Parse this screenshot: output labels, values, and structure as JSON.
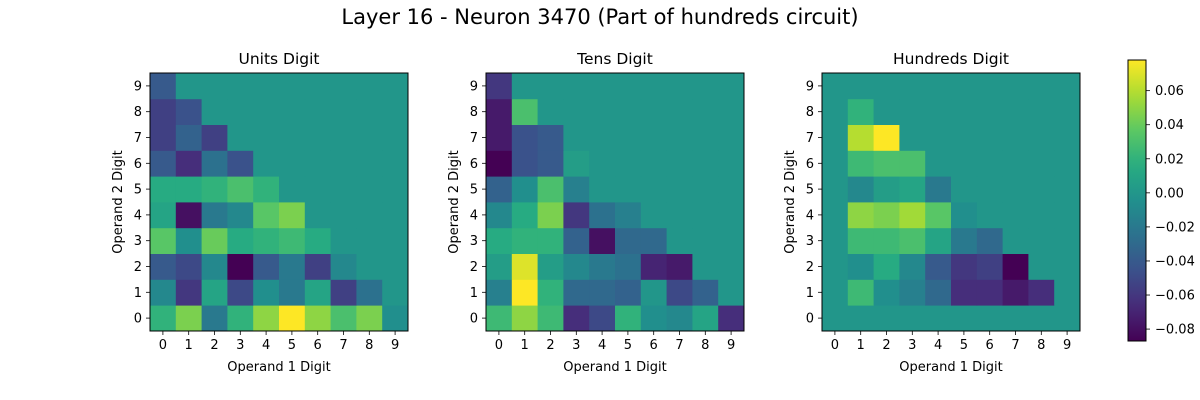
{
  "chart_data": {
    "suptitle": "Layer 16 - Neuron 3470 (Part of hundreds circuit)",
    "colormap": "viridis",
    "vmin": -0.087,
    "vmax": 0.078,
    "colorbar_ticks": [
      0.06,
      0.04,
      0.02,
      0.0,
      -0.02,
      -0.04,
      -0.06,
      -0.08
    ],
    "colorbar_tick_labels": [
      "0.06",
      "0.04",
      "0.02",
      "0.00",
      "−0.02",
      "−0.04",
      "−0.06",
      "−0.08"
    ],
    "x_ticks": [
      "0",
      "1",
      "2",
      "3",
      "4",
      "5",
      "6",
      "7",
      "8",
      "9"
    ],
    "y_ticks": [
      "0",
      "1",
      "2",
      "3",
      "4",
      "5",
      "6",
      "7",
      "8",
      "9"
    ],
    "panels": [
      {
        "type": "heatmap",
        "title": "Units Digit",
        "xlabel": "Operand 1 Digit",
        "ylabel": "Operand 2 Digit",
        "rows_by_operand2": [
          [
            0.02,
            0.045,
            -0.02,
            0.02,
            0.05,
            0.078,
            0.05,
            0.03,
            0.045,
            -0.005
          ],
          [
            -0.01,
            -0.06,
            0.01,
            -0.05,
            -0.005,
            -0.02,
            0.01,
            -0.055,
            -0.025,
            0.0
          ],
          [
            -0.04,
            -0.05,
            -0.01,
            -0.087,
            -0.04,
            -0.02,
            -0.055,
            -0.01,
            0.0,
            0.0
          ],
          [
            0.035,
            -0.005,
            0.04,
            0.015,
            0.02,
            0.025,
            0.015,
            0.0,
            0.0,
            0.0
          ],
          [
            0.01,
            -0.08,
            -0.02,
            -0.01,
            0.035,
            0.045,
            0.0,
            0.0,
            0.0,
            0.0
          ],
          [
            0.015,
            0.015,
            0.02,
            0.03,
            0.02,
            0.0,
            0.0,
            0.0,
            0.0,
            0.0
          ],
          [
            -0.04,
            -0.065,
            -0.025,
            -0.045,
            0.0,
            0.0,
            0.0,
            0.0,
            0.0,
            0.0
          ],
          [
            -0.055,
            -0.035,
            -0.055,
            0.0,
            0.0,
            0.0,
            0.0,
            0.0,
            0.0,
            0.0
          ],
          [
            -0.055,
            -0.045,
            0.0,
            0.0,
            0.0,
            0.0,
            0.0,
            0.0,
            0.0,
            0.0
          ],
          [
            -0.04,
            0.0,
            0.0,
            0.0,
            0.0,
            0.0,
            0.0,
            0.0,
            0.0,
            0.0
          ]
        ]
      },
      {
        "type": "heatmap",
        "title": "Tens Digit",
        "xlabel": "Operand 1 Digit",
        "ylabel": "Operand 2 Digit",
        "rows_by_operand2": [
          [
            0.025,
            0.05,
            0.025,
            -0.065,
            -0.05,
            0.02,
            -0.005,
            -0.01,
            0.01,
            -0.065
          ],
          [
            -0.015,
            0.078,
            0.02,
            -0.03,
            -0.03,
            -0.035,
            0.0,
            -0.05,
            -0.035,
            0.0
          ],
          [
            0.005,
            0.07,
            0.005,
            -0.01,
            -0.02,
            -0.025,
            -0.07,
            -0.075,
            0.0,
            0.0
          ],
          [
            0.015,
            0.02,
            0.02,
            -0.035,
            -0.08,
            -0.03,
            -0.03,
            0.0,
            0.0,
            0.0
          ],
          [
            -0.01,
            0.015,
            0.045,
            -0.06,
            -0.025,
            -0.015,
            0.0,
            0.0,
            0.0,
            0.0
          ],
          [
            -0.035,
            -0.005,
            0.03,
            -0.015,
            0.0,
            0.0,
            0.0,
            0.0,
            0.0,
            0.0
          ],
          [
            -0.087,
            -0.045,
            -0.04,
            0.005,
            0.0,
            0.0,
            0.0,
            0.0,
            0.0,
            0.0
          ],
          [
            -0.075,
            -0.045,
            -0.04,
            0.0,
            0.0,
            0.0,
            0.0,
            0.0,
            0.0,
            0.0
          ],
          [
            -0.075,
            0.03,
            0.0,
            0.0,
            0.0,
            0.0,
            0.0,
            0.0,
            0.0,
            0.0
          ],
          [
            -0.06,
            0.0,
            0.0,
            0.0,
            0.0,
            0.0,
            0.0,
            0.0,
            0.0,
            0.0
          ]
        ]
      },
      {
        "type": "heatmap",
        "title": "Hundreds Digit",
        "xlabel": "Operand 1 Digit",
        "ylabel": "Operand 2 Digit",
        "rows_by_operand2": [
          [
            0.0,
            0.0,
            0.0,
            0.0,
            0.0,
            0.0,
            0.0,
            0.0,
            0.0,
            0.0
          ],
          [
            0.0,
            0.025,
            -0.005,
            -0.015,
            -0.03,
            -0.065,
            -0.065,
            -0.075,
            -0.065,
            0.0
          ],
          [
            0.0,
            -0.005,
            0.015,
            -0.01,
            -0.04,
            -0.06,
            -0.055,
            -0.087,
            0.0,
            0.0
          ],
          [
            0.0,
            0.025,
            0.025,
            0.03,
            0.01,
            -0.02,
            -0.03,
            0.0,
            0.0,
            0.0
          ],
          [
            0.0,
            0.05,
            0.045,
            0.055,
            0.035,
            -0.005,
            0.0,
            0.0,
            0.0,
            0.0
          ],
          [
            0.0,
            -0.01,
            0.005,
            0.01,
            -0.02,
            0.0,
            0.0,
            0.0,
            0.0,
            0.0
          ],
          [
            0.0,
            0.025,
            0.03,
            0.03,
            0.0,
            0.0,
            0.0,
            0.0,
            0.0,
            0.0
          ],
          [
            0.0,
            0.06,
            0.078,
            0.0,
            0.0,
            0.0,
            0.0,
            0.0,
            0.0,
            0.0
          ],
          [
            0.0,
            0.02,
            0.0,
            0.0,
            0.0,
            0.0,
            0.0,
            0.0,
            0.0,
            0.0
          ],
          [
            0.0,
            0.0,
            0.0,
            0.0,
            0.0,
            0.0,
            0.0,
            0.0,
            0.0,
            0.0
          ]
        ]
      }
    ]
  }
}
